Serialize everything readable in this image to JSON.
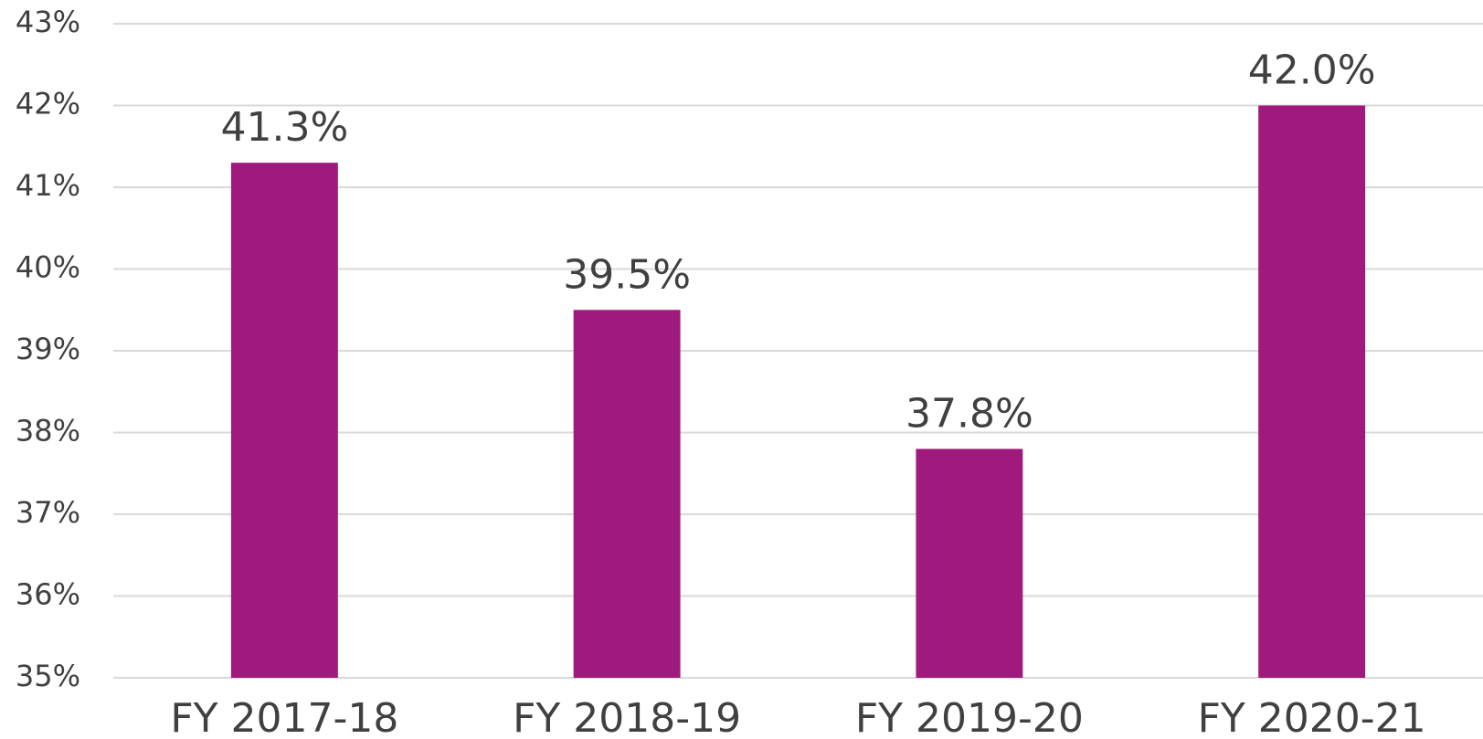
{
  "chart_data": {
    "type": "bar",
    "categories": [
      "FY 2017-18",
      "FY 2018-19",
      "FY 2019-20",
      "FY 2020-21"
    ],
    "values": [
      41.3,
      39.5,
      37.8,
      42.0
    ],
    "value_labels": [
      "41.3%",
      "39.5%",
      "37.8%",
      "42.0%"
    ],
    "color": "#a01a7d",
    "ylim": [
      35,
      43
    ],
    "yticks": [
      {
        "value": 35,
        "label": "35%"
      },
      {
        "value": 36,
        "label": "36%"
      },
      {
        "value": 37,
        "label": "37%"
      },
      {
        "value": 38,
        "label": "38%"
      },
      {
        "value": 39,
        "label": "39%"
      },
      {
        "value": 40,
        "label": "40%"
      },
      {
        "value": 41,
        "label": "41%"
      },
      {
        "value": 42,
        "label": "42%"
      },
      {
        "value": 43,
        "label": "43%"
      }
    ],
    "grid": true
  }
}
